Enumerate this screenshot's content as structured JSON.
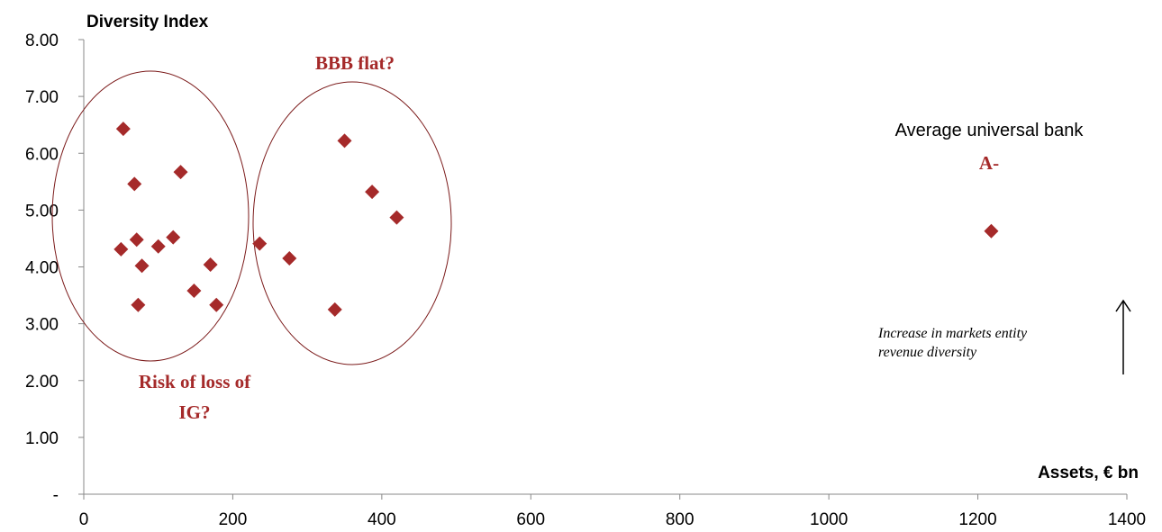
{
  "chart_data": {
    "type": "scatter",
    "ylabel": "Diversity Index",
    "xlabel": "Assets, € bn",
    "xlim": [
      0,
      1400
    ],
    "ylim": [
      0,
      8
    ],
    "x_ticks": [
      0,
      200,
      400,
      600,
      800,
      1000,
      1200,
      1400
    ],
    "x_tick_labels": [
      "0",
      "200",
      "400",
      "600",
      "800",
      "1000",
      "1200",
      "1400"
    ],
    "y_ticks": [
      0,
      1,
      2,
      3,
      4,
      5,
      6,
      7,
      8
    ],
    "y_tick_labels": [
      "-",
      "1.00",
      "2.00",
      "3.00",
      "4.00",
      "5.00",
      "6.00",
      "7.00",
      "8.00"
    ],
    "grid": false,
    "marker_color": "#A52A2A",
    "series": [
      {
        "points": [
          {
            "x": 53,
            "y": 6.43
          },
          {
            "x": 68,
            "y": 5.46
          },
          {
            "x": 130,
            "y": 5.67
          },
          {
            "x": 50,
            "y": 4.31
          },
          {
            "x": 71,
            "y": 4.48
          },
          {
            "x": 78,
            "y": 4.02
          },
          {
            "x": 100,
            "y": 4.36
          },
          {
            "x": 120,
            "y": 4.52
          },
          {
            "x": 170,
            "y": 4.04
          },
          {
            "x": 148,
            "y": 3.58
          },
          {
            "x": 73,
            "y": 3.33
          },
          {
            "x": 178,
            "y": 3.33
          },
          {
            "x": 236,
            "y": 4.41
          },
          {
            "x": 276,
            "y": 4.15
          },
          {
            "x": 337,
            "y": 3.25
          },
          {
            "x": 350,
            "y": 6.22
          },
          {
            "x": 387,
            "y": 5.32
          },
          {
            "x": 420,
            "y": 4.87
          },
          {
            "x": 1218,
            "y": 4.63
          }
        ]
      }
    ],
    "annotations": {
      "bbb": "BBB flat?",
      "risk_line1": "Risk of loss of",
      "risk_line2": "IG?",
      "universal_bank": "Average universal bank",
      "rating": "A-",
      "arrow_line1": "Increase in markets entity",
      "arrow_line2": "revenue diversity"
    }
  }
}
